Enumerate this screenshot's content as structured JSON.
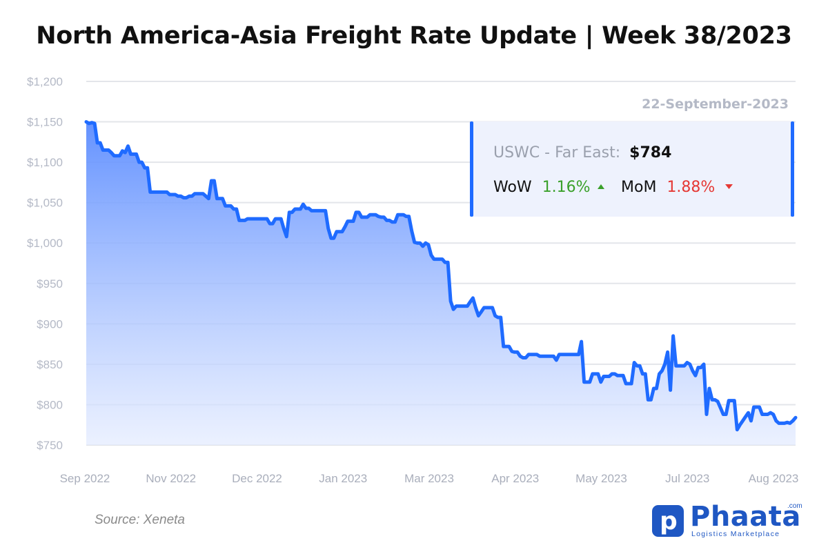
{
  "title": "North America-Asia Freight Rate Update | Week 38/2023",
  "source": "Source: Xeneta",
  "logo": {
    "name": "Phaata",
    "suffix": ".com",
    "tagline": "Logistics Marketplace",
    "color": "#1f57c3"
  },
  "info_box": {
    "date": "22-September-2023",
    "route_label": "USWC - Far East:",
    "route_value": "$784",
    "wow_label": "WoW",
    "wow_value": "1.16%",
    "wow_color": "#3aa02a",
    "mom_label": "MoM",
    "mom_value": "1.88%",
    "mom_color": "#e53935",
    "accent_color": "#1f6bff"
  },
  "chart_data": {
    "type": "area",
    "x_ticks": [
      "Sep 2022",
      "Nov 2022",
      "Dec 2022",
      "Jan 2023",
      "Mar 2023",
      "Apr 2023",
      "May 2023",
      "Jul 2023",
      "Aug 2023"
    ],
    "y_ticks": [
      "$750",
      "$800",
      "$850",
      "$900",
      "$950",
      "$1,000",
      "$1,050",
      "$1,100",
      "$1,150",
      "$1,200"
    ],
    "ylim": [
      750,
      1200
    ],
    "grid": true,
    "line_color": "#1f6bff",
    "values": [
      1150,
      1148,
      1149,
      1148,
      1124,
      1124,
      1115,
      1115,
      1115,
      1112,
      1108,
      1108,
      1108,
      1114,
      1112,
      1120,
      1110,
      1110,
      1110,
      1100,
      1100,
      1093,
      1093,
      1063,
      1063,
      1063,
      1063,
      1063,
      1063,
      1063,
      1060,
      1060,
      1060,
      1058,
      1058,
      1056,
      1056,
      1058,
      1058,
      1061,
      1061,
      1061,
      1061,
      1058,
      1055,
      1077,
      1077,
      1055,
      1055,
      1055,
      1046,
      1046,
      1046,
      1042,
      1042,
      1028,
      1028,
      1028,
      1030,
      1030,
      1030,
      1030,
      1030,
      1030,
      1030,
      1030,
      1024,
      1024,
      1030,
      1030,
      1030,
      1018,
      1008,
      1038,
      1038,
      1042,
      1042,
      1042,
      1048,
      1043,
      1043,
      1040,
      1040,
      1040,
      1040,
      1040,
      1040,
      1018,
      1006,
      1006,
      1014,
      1014,
      1014,
      1020,
      1027,
      1027,
      1027,
      1038,
      1038,
      1032,
      1032,
      1032,
      1035,
      1035,
      1035,
      1033,
      1032,
      1032,
      1028,
      1028,
      1026,
      1026,
      1035,
      1035,
      1035,
      1033,
      1033,
      1015,
      1001,
      1000,
      1000,
      996,
      1000,
      998,
      985,
      980,
      980,
      980,
      980,
      976,
      976,
      928,
      918,
      922,
      922,
      922,
      922,
      922,
      927,
      932,
      920,
      910,
      915,
      920,
      920,
      920,
      920,
      910,
      908,
      908,
      872,
      872,
      872,
      866,
      865,
      865,
      860,
      858,
      858,
      862,
      862,
      862,
      862,
      860,
      860,
      860,
      860,
      860,
      860,
      855,
      862,
      862,
      862,
      862,
      862,
      862,
      862,
      862,
      878,
      828,
      828,
      828,
      838,
      838,
      838,
      828,
      835,
      835,
      835,
      838,
      838,
      836,
      836,
      836,
      826,
      826,
      826,
      852,
      848,
      848,
      838,
      838,
      806,
      806,
      820,
      820,
      838,
      842,
      850,
      865,
      818,
      885,
      848,
      848,
      848,
      848,
      852,
      850,
      842,
      836,
      846,
      846,
      850,
      788,
      820,
      806,
      806,
      804,
      796,
      788,
      788,
      805,
      805,
      805,
      769,
      775,
      780,
      785,
      790,
      780,
      797,
      797,
      797,
      788,
      788,
      788,
      790,
      788,
      780,
      777,
      777,
      777,
      778,
      777,
      780,
      784
    ]
  }
}
